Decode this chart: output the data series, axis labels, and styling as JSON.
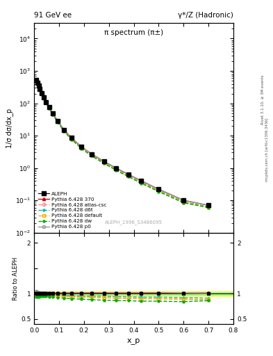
{
  "title_left": "91 GeV ee",
  "title_right": "γ*/Z (Hadronic)",
  "plot_title": "π spectrum (π±)",
  "ylabel_main": "1/σ dσ/dx_p",
  "ylabel_ratio": "Ratio to ALEPH",
  "xlabel": "x_p",
  "watermark": "ALEPH_1996_S3486095",
  "rivet_text": "Rivet 3.1.10, ≥ 3M events",
  "arxiv_text": "mcplots.cern.ch [arXiv:1306.3436]",
  "xp": [
    0.008,
    0.013,
    0.018,
    0.023,
    0.03,
    0.038,
    0.048,
    0.06,
    0.075,
    0.095,
    0.12,
    0.15,
    0.19,
    0.23,
    0.28,
    0.33,
    0.38,
    0.43,
    0.5,
    0.6,
    0.7
  ],
  "aleph_y": [
    530,
    430,
    350,
    280,
    210,
    155,
    110,
    75,
    48,
    28,
    15,
    8.5,
    4.5,
    2.7,
    1.6,
    0.98,
    0.62,
    0.4,
    0.22,
    0.1,
    0.07
  ],
  "py370_y": [
    1.04,
    1.03,
    1.02,
    1.01,
    1.01,
    1.01,
    1.01,
    1.01,
    1.01,
    1.01,
    1.01,
    1.01,
    1.01,
    1.01,
    1.01,
    1.01,
    1.01,
    1.01,
    1.01,
    1.01,
    1.01
  ],
  "py_atlascsc_y": [
    0.96,
    0.97,
    0.97,
    0.97,
    0.97,
    0.97,
    0.97,
    0.97,
    0.96,
    0.96,
    0.95,
    0.94,
    0.93,
    0.93,
    0.92,
    0.91,
    0.91,
    0.9,
    0.9,
    0.89,
    0.88
  ],
  "py_d6t_y": [
    0.98,
    0.98,
    0.98,
    0.99,
    0.99,
    0.99,
    0.99,
    0.98,
    0.98,
    0.97,
    0.97,
    0.96,
    0.95,
    0.95,
    0.95,
    0.94,
    0.94,
    0.93,
    0.93,
    0.92,
    0.91
  ],
  "py_default_y": [
    0.96,
    0.97,
    0.97,
    0.97,
    0.97,
    0.97,
    0.97,
    0.97,
    0.96,
    0.96,
    0.95,
    0.94,
    0.93,
    0.93,
    0.92,
    0.91,
    0.91,
    0.9,
    0.9,
    0.89,
    0.88
  ],
  "py_dw_y": [
    0.93,
    0.94,
    0.94,
    0.95,
    0.95,
    0.95,
    0.95,
    0.94,
    0.93,
    0.92,
    0.91,
    0.9,
    0.89,
    0.88,
    0.87,
    0.86,
    0.86,
    0.85,
    0.85,
    0.84,
    0.86
  ],
  "py_p0_y": [
    1.04,
    1.03,
    1.02,
    1.02,
    1.02,
    1.02,
    1.02,
    1.02,
    1.02,
    1.02,
    1.02,
    1.02,
    1.02,
    1.02,
    1.02,
    1.02,
    1.02,
    1.02,
    1.02,
    1.01,
    1.0
  ],
  "color_370": "#cc0000",
  "color_atlascsc": "#ff8888",
  "color_d6t": "#00bbbb",
  "color_default": "#ffaa00",
  "color_dw": "#00aa00",
  "color_p0": "#999999",
  "band_yellow": [
    0.95,
    1.05
  ],
  "band_green": [
    0.97,
    1.03
  ],
  "xlim": [
    0.0,
    0.8
  ],
  "ylim_main": [
    0.01,
    30000
  ],
  "ylim_ratio": [
    0.4,
    2.2
  ]
}
